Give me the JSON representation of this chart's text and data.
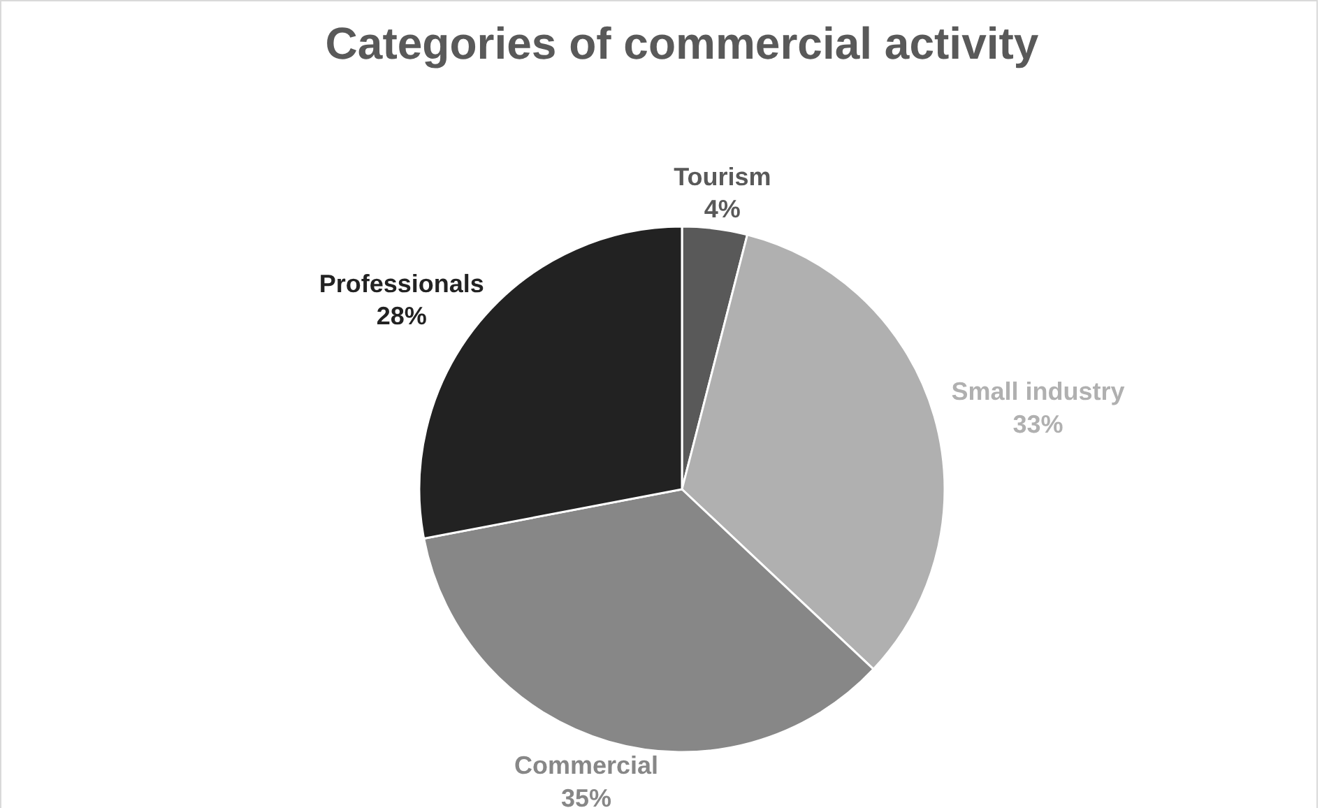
{
  "chart_data": {
    "type": "pie",
    "title": "Categories of commercial activity",
    "categories": [
      "Tourism",
      "Small industry",
      "Commercial",
      "Professionals"
    ],
    "values": [
      4,
      33,
      35,
      28
    ],
    "colors": [
      "#595959",
      "#b0b0b0",
      "#878787",
      "#222222"
    ],
    "value_labels": [
      "4%",
      "33%",
      "35%",
      "28%"
    ]
  }
}
